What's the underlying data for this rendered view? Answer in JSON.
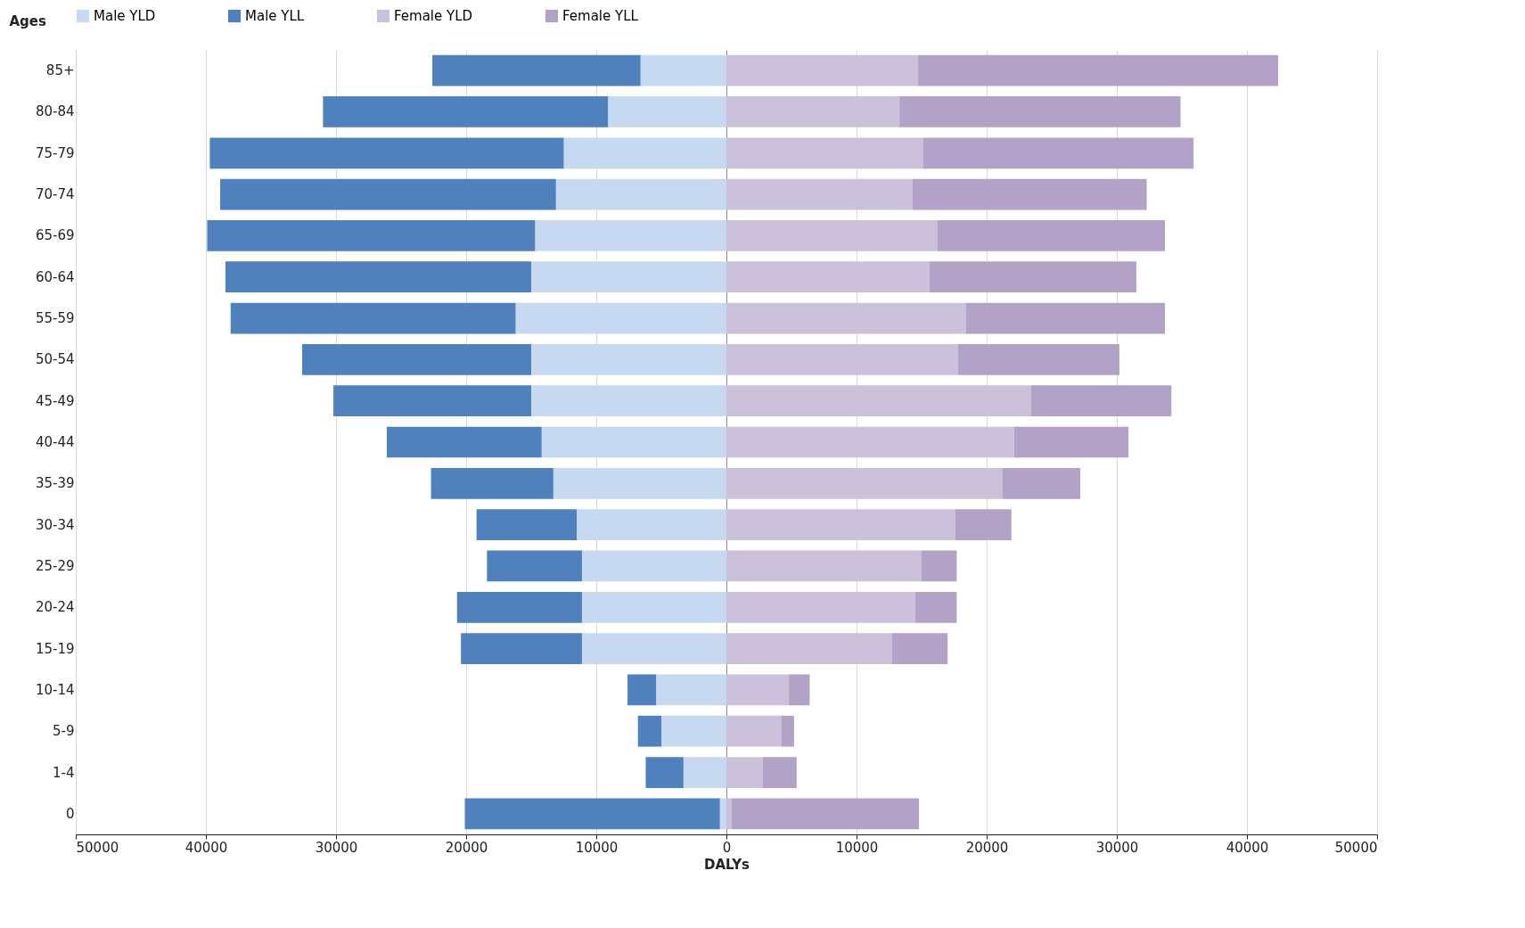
{
  "chart_data": {
    "type": "bar",
    "orientation": "horizontal",
    "stacked": true,
    "xlabel": "DALYs",
    "ylabel": "Ages",
    "legend": "top",
    "grid": "x",
    "categories": [
      "85+",
      "80-84",
      "75-79",
      "70-74",
      "65-69",
      "60-64",
      "55-59",
      "50-54",
      "45-49",
      "40-44",
      "35-39",
      "30-34",
      "25-29",
      "20-24",
      "15-19",
      "10-14",
      "5-9",
      "1-4",
      "0"
    ],
    "xlim": [
      -50000,
      50000
    ],
    "xticks": [
      {
        "value": -50000,
        "label": "50000"
      },
      {
        "value": -40000,
        "label": "40000"
      },
      {
        "value": -30000,
        "label": "30000"
      },
      {
        "value": -20000,
        "label": "20000"
      },
      {
        "value": -10000,
        "label": "10000"
      },
      0,
      10000,
      20000,
      30000,
      40000,
      50000
    ],
    "series": [
      {
        "name": "Male YLD",
        "color": "#c6d9f1",
        "values": [
          -6600,
          -9100,
          -12500,
          -13100,
          -14700,
          -15000,
          -16200,
          -15000,
          -15000,
          -14200,
          -13300,
          -11500,
          -11100,
          -11100,
          -11100,
          -5400,
          -5000,
          -3300,
          -500
        ]
      },
      {
        "name": "Male YLL",
        "color": "#4f81bd",
        "values": [
          -16000,
          -21900,
          -27200,
          -25800,
          -25200,
          -23500,
          -21900,
          -17600,
          -15200,
          -11900,
          -9400,
          -7700,
          -7300,
          -9600,
          -9300,
          -2200,
          -1800,
          -2900,
          -19600
        ]
      },
      {
        "name": "Female YLD",
        "color": "#ccc1da",
        "values": [
          14700,
          13300,
          15100,
          14300,
          16200,
          15600,
          18400,
          17800,
          23400,
          22100,
          21200,
          17600,
          15000,
          14500,
          12700,
          4800,
          4200,
          2800,
          400
        ]
      },
      {
        "name": "Female YLL",
        "color": "#b3a2c7",
        "values": [
          27700,
          21600,
          20800,
          18000,
          17500,
          15900,
          15300,
          12400,
          10800,
          8800,
          6000,
          4300,
          2700,
          3200,
          4300,
          1600,
          1000,
          2600,
          14400
        ]
      }
    ]
  }
}
